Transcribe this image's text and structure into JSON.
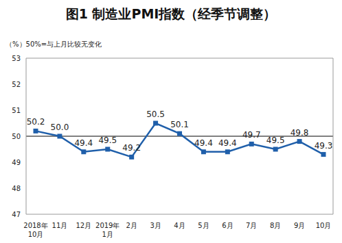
{
  "chart_data": {
    "type": "line",
    "title": "图1 制造业PMI指数（经季节调整）",
    "y_label": "（%）",
    "annotation": "50%=与上月比较无变化",
    "categories": [
      "2018年10月",
      "11月",
      "12月",
      "2019年1月",
      "2月",
      "3月",
      "4月",
      "5月",
      "6月",
      "7月",
      "8月",
      "9月",
      "10月"
    ],
    "values": [
      50.2,
      50.0,
      49.4,
      49.5,
      49.2,
      50.5,
      50.1,
      49.4,
      49.4,
      49.7,
      49.5,
      49.8,
      49.3
    ],
    "value_labels": [
      "50.2",
      "50.0",
      "49.4",
      "49.5",
      "49.2",
      "50.5",
      "50.1",
      "49.4",
      "49.4",
      "49.7",
      "49.5",
      "49.8",
      "49.3"
    ],
    "reference_line": 50,
    "color": "#1F5FAA",
    "marker": "square",
    "data_labels": true,
    "grid": false,
    "ylim": [
      47,
      53
    ],
    "yticks": [
      47,
      48,
      49,
      50,
      51,
      52,
      53
    ]
  }
}
